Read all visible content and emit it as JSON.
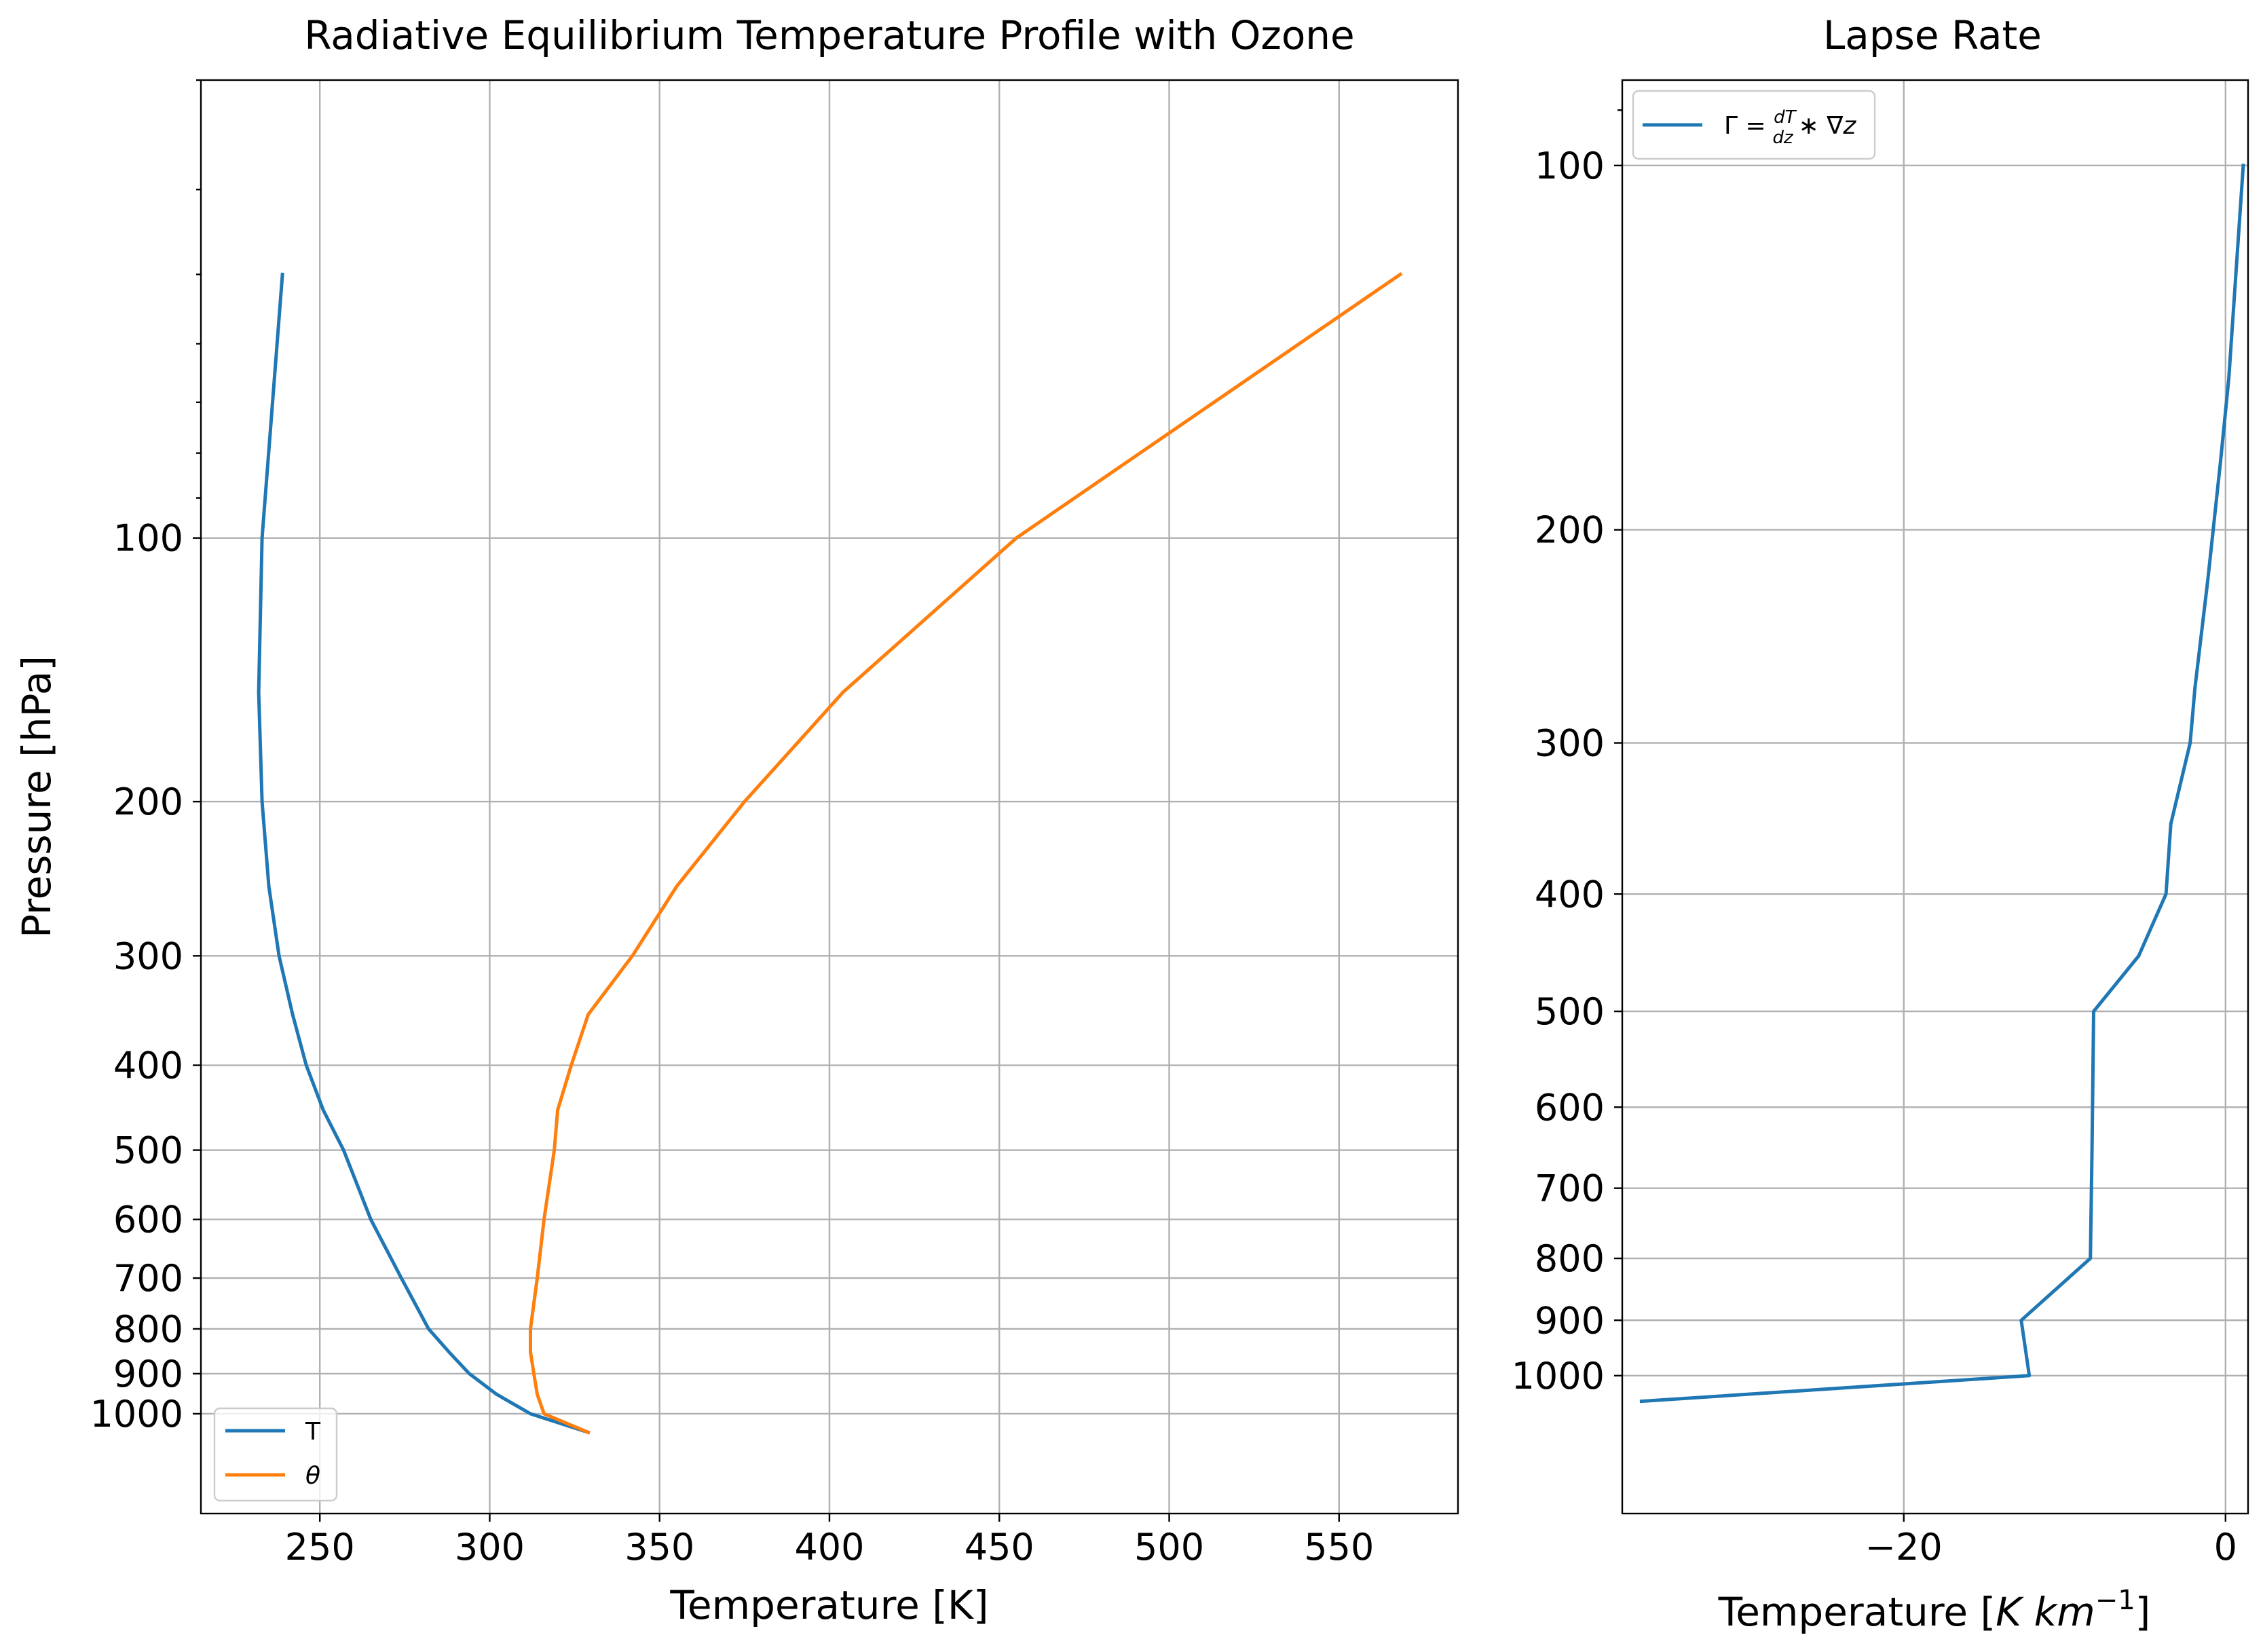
{
  "chart_data": [
    {
      "type": "line",
      "title": "Radiative Equilibrium Temperature Profile with Ozone",
      "xlabel": "Temperature [K]",
      "ylabel": "Pressure [hPa]",
      "xlim": [
        215,
        585
      ],
      "ylim": [
        1300,
        30
      ],
      "yscale": "log",
      "grid": true,
      "legend_position": "lower left",
      "x_ticks": [
        250,
        300,
        350,
        400,
        450,
        500,
        550
      ],
      "x_tick_labels": [
        "250",
        "300",
        "350",
        "400",
        "450",
        "500",
        "550"
      ],
      "y_ticks": [
        100,
        200,
        300,
        400,
        500,
        600,
        700,
        800,
        900,
        1000
      ],
      "y_tick_labels": [
        "100",
        "200",
        "300",
        "400",
        "500",
        "600",
        "700",
        "800",
        "900",
        "1000"
      ],
      "series": [
        {
          "name": "T",
          "color": "#1f77b4",
          "x": [
            239,
            233,
            232,
            233,
            235,
            238,
            242,
            246,
            251,
            257,
            265,
            274,
            282,
            288,
            294,
            302,
            312,
            329
          ],
          "y": [
            50,
            100,
            150,
            200,
            250,
            300,
            350,
            400,
            450,
            500,
            600,
            700,
            800,
            850,
            900,
            950,
            1000,
            1050
          ]
        },
        {
          "name": "θ",
          "color": "#ff7f0e",
          "x": [
            568,
            455,
            404,
            375,
            355,
            342,
            329,
            324,
            320,
            319,
            316,
            314,
            312,
            312,
            313,
            314,
            316,
            329
          ],
          "y": [
            50,
            100,
            150,
            200,
            250,
            300,
            350,
            400,
            450,
            500,
            600,
            700,
            800,
            850,
            900,
            950,
            1000,
            1050
          ]
        }
      ]
    },
    {
      "type": "line",
      "title": "Lapse Rate",
      "xlabel": "Temperature [K km⁻¹]",
      "ylabel": "",
      "xlim": [
        -37.5,
        1.4
      ],
      "ylim": [
        1300,
        85
      ],
      "yscale": "log",
      "grid": true,
      "legend_position": "upper left",
      "x_ticks": [
        -20,
        0
      ],
      "x_tick_labels": [
        "−20",
        "0"
      ],
      "y_ticks": [
        100,
        200,
        300,
        400,
        500,
        600,
        700,
        800,
        900,
        1000
      ],
      "y_tick_labels": [
        "100",
        "200",
        "300",
        "400",
        "500",
        "600",
        "700",
        "800",
        "900",
        "1000"
      ],
      "series": [
        {
          "name": "Γ = dT/dz ∗ ∇z",
          "color": "#1f77b4",
          "x": [
            1.1,
            0.2,
            -0.3,
            -1.1,
            -1.9,
            -2.2,
            -3.4,
            -3.7,
            -5.4,
            -8.2,
            -8.3,
            -8.4,
            -12.7,
            -12.2,
            -36.3
          ],
          "y": [
            100,
            150,
            175,
            220,
            270,
            300,
            350,
            400,
            450,
            500,
            650,
            800,
            900,
            1000,
            1050
          ]
        }
      ]
    }
  ]
}
